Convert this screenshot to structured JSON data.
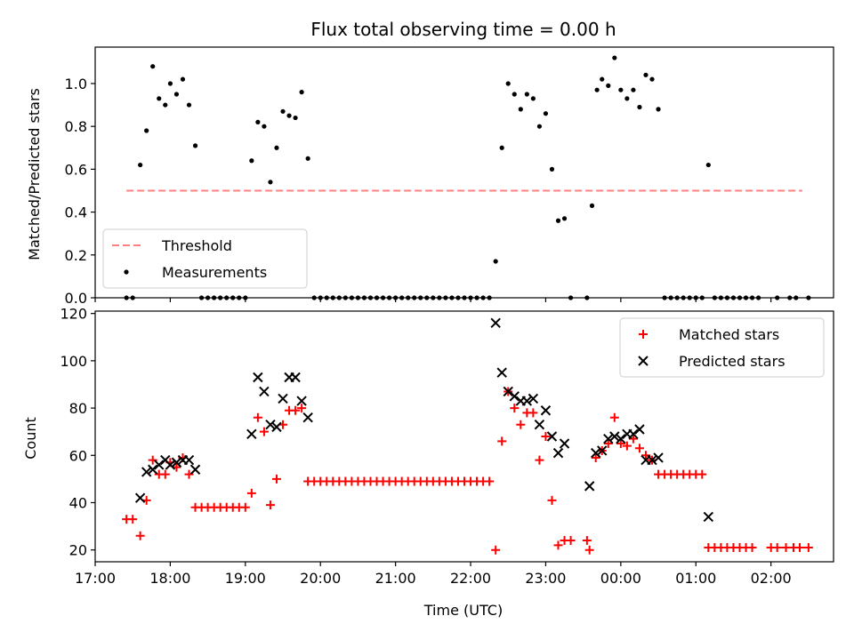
{
  "chart_data": [
    {
      "type": "scatter",
      "title": "Flux total observing time = 0.00 h",
      "xlabel": "",
      "ylabel": "Matched/Predicted stars",
      "xlim": [
        "17:00",
        "02:50"
      ],
      "ylim": [
        0,
        1.17
      ],
      "yticks": [
        0.0,
        0.2,
        0.4,
        0.6,
        0.8,
        1.0
      ],
      "ytick_labels": [
        "0.0",
        "0.2",
        "0.4",
        "0.6",
        "0.8",
        "1.0"
      ],
      "grid": false,
      "legend_placement": "lower-left",
      "series": [
        {
          "name": "Threshold",
          "kind": "dashed-line",
          "color": "#ff8080",
          "points": [
            [
              "17:25",
              0.5
            ],
            [
              "02:25",
              0.5
            ]
          ]
        },
        {
          "name": "Measurements",
          "kind": "dot",
          "color": "#000000",
          "points": [
            [
              "17:25",
              0.0
            ],
            [
              "17:30",
              0.0
            ],
            [
              "17:36",
              0.62
            ],
            [
              "17:41",
              0.78
            ],
            [
              "17:46",
              1.08
            ],
            [
              "17:51",
              0.93
            ],
            [
              "17:56",
              0.9
            ],
            [
              "18:00",
              1.0
            ],
            [
              "18:05",
              0.95
            ],
            [
              "18:10",
              1.02
            ],
            [
              "18:15",
              0.9
            ],
            [
              "18:20",
              0.71
            ],
            [
              "18:25",
              0.0
            ],
            [
              "18:30",
              0.0
            ],
            [
              "18:35",
              0.0
            ],
            [
              "18:40",
              0.0
            ],
            [
              "18:45",
              0.0
            ],
            [
              "18:50",
              0.0
            ],
            [
              "18:55",
              0.0
            ],
            [
              "19:00",
              0.0
            ],
            [
              "19:05",
              0.64
            ],
            [
              "19:10",
              0.82
            ],
            [
              "19:15",
              0.8
            ],
            [
              "19:20",
              0.54
            ],
            [
              "19:25",
              0.7
            ],
            [
              "19:30",
              0.87
            ],
            [
              "19:35",
              0.85
            ],
            [
              "19:40",
              0.84
            ],
            [
              "19:45",
              0.96
            ],
            [
              "19:50",
              0.65
            ],
            [
              "19:55",
              0.0
            ],
            [
              "20:00",
              0.0
            ],
            [
              "20:05",
              0.0
            ],
            [
              "20:10",
              0.0
            ],
            [
              "20:15",
              0.0
            ],
            [
              "20:20",
              0.0
            ],
            [
              "20:25",
              0.0
            ],
            [
              "20:30",
              0.0
            ],
            [
              "20:35",
              0.0
            ],
            [
              "20:40",
              0.0
            ],
            [
              "20:45",
              0.0
            ],
            [
              "20:50",
              0.0
            ],
            [
              "20:55",
              0.0
            ],
            [
              "21:00",
              0.0
            ],
            [
              "21:05",
              0.0
            ],
            [
              "21:10",
              0.0
            ],
            [
              "21:15",
              0.0
            ],
            [
              "21:20",
              0.0
            ],
            [
              "21:25",
              0.0
            ],
            [
              "21:30",
              0.0
            ],
            [
              "21:35",
              0.0
            ],
            [
              "21:40",
              0.0
            ],
            [
              "21:45",
              0.0
            ],
            [
              "21:50",
              0.0
            ],
            [
              "21:55",
              0.0
            ],
            [
              "22:00",
              0.0
            ],
            [
              "22:05",
              0.0
            ],
            [
              "22:10",
              0.0
            ],
            [
              "22:15",
              0.0
            ],
            [
              "22:20",
              0.17
            ],
            [
              "22:25",
              0.7
            ],
            [
              "22:30",
              1.0
            ],
            [
              "22:35",
              0.95
            ],
            [
              "22:40",
              0.88
            ],
            [
              "22:45",
              0.95
            ],
            [
              "22:50",
              0.93
            ],
            [
              "22:55",
              0.8
            ],
            [
              "23:00",
              0.86
            ],
            [
              "23:05",
              0.6
            ],
            [
              "23:10",
              0.36
            ],
            [
              "23:15",
              0.37
            ],
            [
              "23:20",
              0.0
            ],
            [
              "23:33",
              0.0
            ],
            [
              "23:37",
              0.43
            ],
            [
              "23:41",
              0.97
            ],
            [
              "23:45",
              1.02
            ],
            [
              "23:50",
              0.99
            ],
            [
              "23:55",
              1.12
            ],
            [
              "00:00",
              0.97
            ],
            [
              "00:05",
              0.93
            ],
            [
              "00:10",
              0.97
            ],
            [
              "00:15",
              0.89
            ],
            [
              "00:20",
              1.04
            ],
            [
              "00:25",
              1.02
            ],
            [
              "00:30",
              0.88
            ],
            [
              "00:35",
              0.0
            ],
            [
              "00:40",
              0.0
            ],
            [
              "00:45",
              0.0
            ],
            [
              "00:50",
              0.0
            ],
            [
              "00:55",
              0.0
            ],
            [
              "01:00",
              0.0
            ],
            [
              "01:05",
              0.0
            ],
            [
              "01:10",
              0.62
            ],
            [
              "01:15",
              0.0
            ],
            [
              "01:20",
              0.0
            ],
            [
              "01:25",
              0.0
            ],
            [
              "01:30",
              0.0
            ],
            [
              "01:35",
              0.0
            ],
            [
              "01:40",
              0.0
            ],
            [
              "01:45",
              0.0
            ],
            [
              "01:50",
              0.0
            ],
            [
              "02:05",
              0.0
            ],
            [
              "02:15",
              0.0
            ],
            [
              "02:20",
              0.0
            ],
            [
              "02:30",
              0.0
            ]
          ]
        }
      ]
    },
    {
      "type": "scatter",
      "title": "",
      "xlabel": "Time (UTC)",
      "ylabel": "Count",
      "xlim": [
        "17:00",
        "02:50"
      ],
      "ylim": [
        15,
        121
      ],
      "xticks": [
        "17:00",
        "18:00",
        "19:00",
        "20:00",
        "21:00",
        "22:00",
        "23:00",
        "00:00",
        "01:00",
        "02:00"
      ],
      "yticks": [
        20,
        40,
        60,
        80,
        100,
        120
      ],
      "ytick_labels": [
        "20",
        "40",
        "60",
        "80",
        "100",
        "120"
      ],
      "grid": false,
      "legend_placement": "upper-right",
      "series": [
        {
          "name": "Matched stars",
          "marker": "plus",
          "color": "#ff0000",
          "points": [
            [
              "17:25",
              33
            ],
            [
              "17:30",
              33
            ],
            [
              "17:36",
              26
            ],
            [
              "17:41",
              41
            ],
            [
              "17:46",
              58
            ],
            [
              "17:51",
              52
            ],
            [
              "17:56",
              52
            ],
            [
              "18:00",
              57
            ],
            [
              "18:05",
              55
            ],
            [
              "18:10",
              59
            ],
            [
              "18:15",
              52
            ],
            [
              "18:20",
              38
            ],
            [
              "18:25",
              38
            ],
            [
              "18:30",
              38
            ],
            [
              "18:35",
              38
            ],
            [
              "18:40",
              38
            ],
            [
              "18:45",
              38
            ],
            [
              "18:50",
              38
            ],
            [
              "18:55",
              38
            ],
            [
              "19:00",
              38
            ],
            [
              "19:05",
              44
            ],
            [
              "19:10",
              76
            ],
            [
              "19:15",
              70
            ],
            [
              "19:20",
              39
            ],
            [
              "19:25",
              50
            ],
            [
              "19:30",
              73
            ],
            [
              "19:35",
              79
            ],
            [
              "19:40",
              79
            ],
            [
              "19:45",
              80
            ],
            [
              "19:50",
              49
            ],
            [
              "19:55",
              49
            ],
            [
              "20:00",
              49
            ],
            [
              "20:05",
              49
            ],
            [
              "20:10",
              49
            ],
            [
              "20:15",
              49
            ],
            [
              "20:20",
              49
            ],
            [
              "20:25",
              49
            ],
            [
              "20:30",
              49
            ],
            [
              "20:35",
              49
            ],
            [
              "20:40",
              49
            ],
            [
              "20:45",
              49
            ],
            [
              "20:50",
              49
            ],
            [
              "20:55",
              49
            ],
            [
              "21:00",
              49
            ],
            [
              "21:05",
              49
            ],
            [
              "21:10",
              49
            ],
            [
              "21:15",
              49
            ],
            [
              "21:20",
              49
            ],
            [
              "21:25",
              49
            ],
            [
              "21:30",
              49
            ],
            [
              "21:35",
              49
            ],
            [
              "21:40",
              49
            ],
            [
              "21:45",
              49
            ],
            [
              "21:50",
              49
            ],
            [
              "21:55",
              49
            ],
            [
              "22:00",
              49
            ],
            [
              "22:05",
              49
            ],
            [
              "22:10",
              49
            ],
            [
              "22:15",
              49
            ],
            [
              "22:20",
              20
            ],
            [
              "22:25",
              66
            ],
            [
              "22:30",
              87
            ],
            [
              "22:35",
              80
            ],
            [
              "22:40",
              73
            ],
            [
              "22:45",
              78
            ],
            [
              "22:50",
              78
            ],
            [
              "22:55",
              58
            ],
            [
              "23:00",
              68
            ],
            [
              "23:05",
              41
            ],
            [
              "23:10",
              22
            ],
            [
              "23:15",
              24
            ],
            [
              "23:20",
              24
            ],
            [
              "23:33",
              24
            ],
            [
              "23:35",
              20
            ],
            [
              "23:40",
              59
            ],
            [
              "23:45",
              62
            ],
            [
              "23:50",
              65
            ],
            [
              "23:55",
              76
            ],
            [
              "00:00",
              65
            ],
            [
              "00:05",
              64
            ],
            [
              "00:10",
              67
            ],
            [
              "00:15",
              63
            ],
            [
              "00:20",
              60
            ],
            [
              "00:25",
              58
            ],
            [
              "00:30",
              52
            ],
            [
              "00:35",
              52
            ],
            [
              "00:40",
              52
            ],
            [
              "00:45",
              52
            ],
            [
              "00:50",
              52
            ],
            [
              "00:55",
              52
            ],
            [
              "01:00",
              52
            ],
            [
              "01:05",
              52
            ],
            [
              "01:10",
              21
            ],
            [
              "01:15",
              21
            ],
            [
              "01:20",
              21
            ],
            [
              "01:25",
              21
            ],
            [
              "01:30",
              21
            ],
            [
              "01:35",
              21
            ],
            [
              "01:40",
              21
            ],
            [
              "01:45",
              21
            ],
            [
              "02:00",
              21
            ],
            [
              "02:05",
              21
            ],
            [
              "02:12",
              21
            ],
            [
              "02:18",
              21
            ],
            [
              "02:23",
              21
            ],
            [
              "02:30",
              21
            ]
          ]
        },
        {
          "name": "Predicted stars",
          "marker": "x",
          "color": "#000000",
          "points": [
            [
              "17:36",
              42
            ],
            [
              "17:41",
              53
            ],
            [
              "17:46",
              54
            ],
            [
              "17:51",
              56
            ],
            [
              "17:56",
              58
            ],
            [
              "18:00",
              56
            ],
            [
              "18:05",
              57
            ],
            [
              "18:10",
              58
            ],
            [
              "18:15",
              58
            ],
            [
              "18:20",
              54
            ],
            [
              "19:05",
              69
            ],
            [
              "19:10",
              93
            ],
            [
              "19:15",
              87
            ],
            [
              "19:20",
              73
            ],
            [
              "19:25",
              72
            ],
            [
              "19:30",
              84
            ],
            [
              "19:35",
              93
            ],
            [
              "19:40",
              93
            ],
            [
              "19:45",
              83
            ],
            [
              "19:50",
              76
            ],
            [
              "22:20",
              116
            ],
            [
              "22:25",
              95
            ],
            [
              "22:30",
              87
            ],
            [
              "22:35",
              85
            ],
            [
              "22:40",
              83
            ],
            [
              "22:45",
              83
            ],
            [
              "22:50",
              84
            ],
            [
              "22:55",
              73
            ],
            [
              "23:00",
              79
            ],
            [
              "23:05",
              68
            ],
            [
              "23:10",
              61
            ],
            [
              "23:15",
              65
            ],
            [
              "23:35",
              47
            ],
            [
              "23:40",
              61
            ],
            [
              "23:45",
              62
            ],
            [
              "23:50",
              67
            ],
            [
              "23:55",
              68
            ],
            [
              "00:00",
              67
            ],
            [
              "00:05",
              69
            ],
            [
              "00:10",
              69
            ],
            [
              "00:15",
              71
            ],
            [
              "00:20",
              58
            ],
            [
              "00:25",
              58
            ],
            [
              "00:30",
              59
            ],
            [
              "01:10",
              34
            ]
          ]
        }
      ]
    }
  ]
}
